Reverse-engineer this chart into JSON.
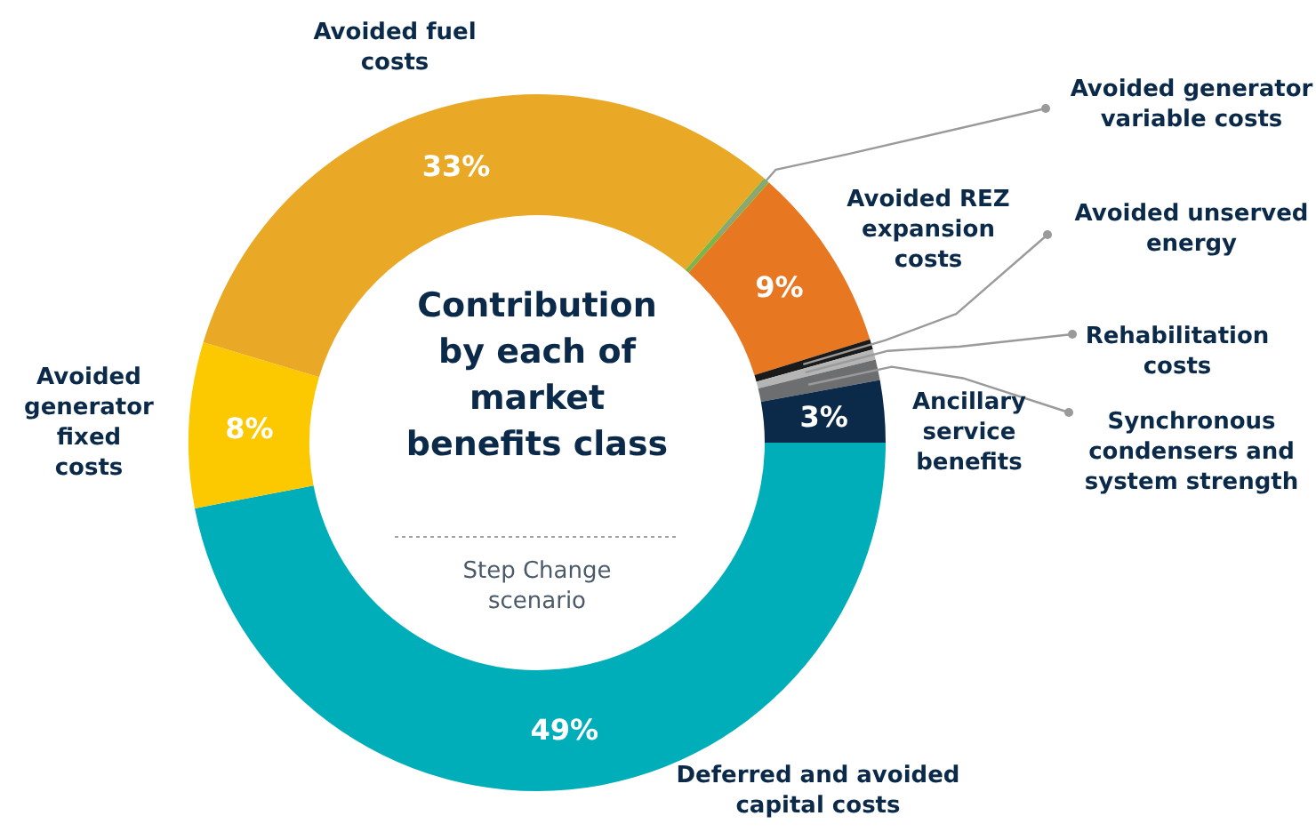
{
  "chart_data": {
    "type": "donut",
    "title": "Contribution by each of market benefits class",
    "subtitle": "Step Change scenario",
    "categories": [
      "Deferred and avoided capital costs",
      "Avoided generator fixed costs",
      "Avoided fuel costs",
      "Avoided generator variable costs",
      "Avoided REZ expansion costs",
      "Avoided unserved energy",
      "Rehabilitation costs",
      "Synchronous condensers and system strength",
      "Ancillary service benefits"
    ],
    "values": [
      49,
      8,
      33,
      0.3,
      9,
      0.5,
      0.5,
      1,
      3
    ],
    "value_labels": [
      "49%",
      "8%",
      "33%",
      null,
      "9%",
      null,
      null,
      null,
      "3%"
    ],
    "colors": [
      "#00aeb9",
      "#fcc800",
      "#e9a825",
      "#7ab648",
      "#e87722",
      "#1a1a1a",
      "#b5b5b5",
      "#6d6e70",
      "#0b2a4a"
    ]
  }
}
